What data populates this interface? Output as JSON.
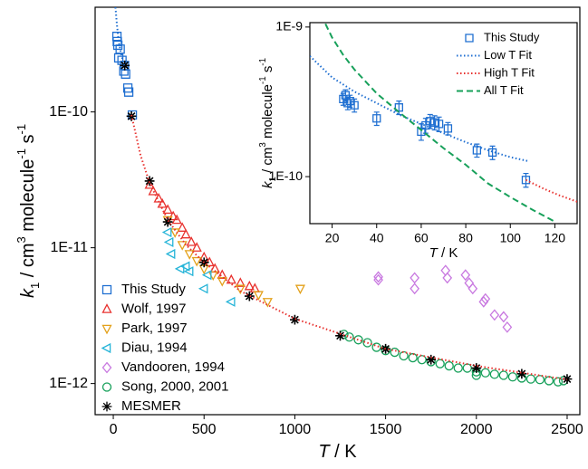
{
  "chart_data": [
    {
      "type": "scatter",
      "xlabel": [
        {
          "text": "T",
          "style": "italic"
        },
        {
          "text": " / K"
        }
      ],
      "ylabel": [
        {
          "text": "k",
          "style": "italic"
        },
        {
          "text": "1",
          "style": "sub"
        },
        {
          "text": " / cm"
        },
        {
          "text": "3",
          "style": "sup"
        },
        {
          "text": " molecule"
        },
        {
          "text": "-1",
          "style": "sup"
        },
        {
          "text": " s"
        },
        {
          "text": "-1",
          "style": "sup"
        }
      ],
      "xlim": [
        -100,
        2570
      ],
      "xticks": [
        0,
        500,
        1000,
        1500,
        2000,
        2500
      ],
      "ylim": [
        5.9e-13,
        5.9e-10
      ],
      "log_y": true,
      "yticks": [
        {
          "value": 1e-12,
          "label": "1E-12"
        },
        {
          "value": 1e-11,
          "label": "1E-11"
        },
        {
          "value": 1e-10,
          "label": "1E-10"
        }
      ],
      "legend": "lower left",
      "series": [
        {
          "name": "This Study",
          "color": "#1f6fd1",
          "marker": "square",
          "x": [
            20,
            22,
            25,
            30,
            38,
            48,
            58,
            62,
            68,
            80,
            85,
            105
          ],
          "values": [
            3.6e-10,
            3.3e-10,
            3.1e-10,
            2.5e-10,
            2.9e-10,
            2.4e-10,
            2e-10,
            2.2e-10,
            1.9e-10,
            1.5e-10,
            1.4e-10,
            9.5e-11
          ]
        },
        {
          "name": "Wolf, 1997",
          "color": "#e8322f",
          "marker": "triangle-up",
          "x": [
            200,
            220,
            250,
            270,
            300,
            330,
            350,
            380,
            400,
            430,
            460,
            500,
            530,
            560,
            600,
            650,
            700,
            750,
            780
          ],
          "values": [
            2.9e-11,
            2.6e-11,
            2.3e-11,
            2.1e-11,
            1.9e-11,
            1.7e-11,
            1.6e-11,
            1.4e-11,
            1.25e-11,
            1.1e-11,
            1e-11,
            8.5e-12,
            7.8e-12,
            7e-12,
            6.3e-12,
            5.8e-12,
            5.5e-12,
            5.2e-12,
            5e-12
          ]
        },
        {
          "name": "Park, 1997",
          "color": "#e3a11b",
          "marker": "triangle-down",
          "x": [
            300,
            340,
            380,
            420,
            460,
            500,
            550,
            600,
            700,
            800,
            850,
            1030
          ],
          "values": [
            1.6e-11,
            1.3e-11,
            1.05e-11,
            9e-12,
            8e-12,
            7e-12,
            6.3e-12,
            5.7e-12,
            5e-12,
            4.5e-12,
            4e-12,
            5e-12
          ]
        },
        {
          "name": "Diau, 1994",
          "color": "#25b4d8",
          "marker": "triangle-left",
          "x": [
            300,
            310,
            320,
            370,
            400,
            420,
            500,
            520,
            650
          ],
          "values": [
            1.3e-11,
            1.1e-11,
            9e-12,
            7e-12,
            7.3e-12,
            6.7e-12,
            5e-12,
            6.3e-12,
            4e-12
          ]
        },
        {
          "name": "Vandooren, 1994",
          "color": "#c878e0",
          "marker": "diamond",
          "x": [
            1460,
            1460,
            1660,
            1660,
            1830,
            1840,
            1940,
            1960,
            1980,
            2040,
            2050,
            2100,
            2150,
            2170
          ],
          "values": [
            6.1e-12,
            5.8e-12,
            6e-12,
            5e-12,
            6.8e-12,
            6e-12,
            6.3e-12,
            5.5e-12,
            5e-12,
            4e-12,
            4.2e-12,
            3.2e-12,
            3.1e-12,
            2.6e-12
          ]
        },
        {
          "name": "Song, 2000, 2001",
          "color": "#17a05a",
          "marker": "circle",
          "x": [
            1270,
            1300,
            1350,
            1400,
            1450,
            1500,
            1550,
            1600,
            1650,
            1700,
            1750,
            1800,
            1850,
            1900,
            1950,
            2000,
            2000,
            2050,
            2100,
            2150,
            2200,
            2250,
            2300,
            2350,
            2400,
            2450,
            2480
          ],
          "values": [
            2.3e-12,
            2.2e-12,
            2.1e-12,
            2e-12,
            1.85e-12,
            1.75e-12,
            1.7e-12,
            1.6e-12,
            1.55e-12,
            1.5e-12,
            1.45e-12,
            1.4e-12,
            1.35e-12,
            1.3e-12,
            1.3e-12,
            1.22e-12,
            1.15e-12,
            1.2e-12,
            1.17e-12,
            1.15e-12,
            1.12e-12,
            1.1e-12,
            1.08e-12,
            1.07e-12,
            1.05e-12,
            1.03e-12,
            1.05e-12
          ]
        },
        {
          "name": "MESMER",
          "color": "#000000",
          "marker": "asterisk",
          "x": [
            63,
            100,
            200,
            300,
            500,
            750,
            1000,
            1250,
            1500,
            1750,
            2000,
            2250,
            2500
          ],
          "values": [
            2.2e-10,
            9.3e-11,
            3.1e-11,
            1.55e-11,
            7.8e-12,
            4.4e-12,
            2.95e-12,
            2.25e-12,
            1.8e-12,
            1.5e-12,
            1.3e-12,
            1.18e-12,
            1.08e-12
          ]
        },
        {
          "color": "#1f6fd1",
          "line": "dotted",
          "x": [
            12,
            20,
            30,
            45,
            60
          ],
          "values": [
            5.9e-10,
            4.4e-10,
            3.3e-10,
            2.6e-10,
            2.2e-10
          ]
        },
        {
          "color": "#e8322f",
          "line": "dotted",
          "x": [
            100,
            150,
            200,
            300,
            400,
            500,
            700,
            1000,
            1500,
            2000,
            2500
          ],
          "values": [
            9.5e-11,
            4.8e-11,
            3e-11,
            1.6e-11,
            1.05e-11,
            7.8e-12,
            4.8e-12,
            3e-12,
            1.8e-12,
            1.35e-12,
            1.07e-12
          ]
        }
      ]
    },
    {
      "type": "scatter",
      "xlabel": [
        {
          "text": "T",
          "style": "italic"
        },
        {
          "text": " / K"
        }
      ],
      "ylabel": [
        {
          "text": "k",
          "style": "italic"
        },
        {
          "text": "1",
          "style": "sub"
        },
        {
          "text": " / cm"
        },
        {
          "text": "3",
          "style": "sup"
        },
        {
          "text": " molecule"
        },
        {
          "text": "-1",
          "style": "sup"
        },
        {
          "text": " s"
        },
        {
          "text": "-1",
          "style": "sup"
        }
      ],
      "xlim": [
        10,
        130
      ],
      "xticks": [
        20,
        40,
        60,
        80,
        100,
        120
      ],
      "ylim": [
        4.85e-11,
        1.07e-09
      ],
      "log_y": true,
      "yticks": [
        {
          "value": 1e-10,
          "label": "1E-10"
        },
        {
          "value": 1e-09,
          "label": "1E-9"
        }
      ],
      "legend": "upper right",
      "series": [
        {
          "name": "This Study",
          "color": "#1f6fd1",
          "marker": "square",
          "x": [
            25,
            26,
            27,
            28,
            30,
            40,
            50,
            60,
            62,
            64,
            66,
            68,
            72,
            85,
            92,
            107
          ],
          "values": [
            3.3e-10,
            3.5e-10,
            3.1e-10,
            3.2e-10,
            3e-10,
            2.45e-10,
            2.9e-10,
            2e-10,
            2.2e-10,
            2.35e-10,
            2.3e-10,
            2.25e-10,
            2.1e-10,
            1.5e-10,
            1.45e-10,
            9.5e-11
          ],
          "errors": [
            3e-11,
            3e-11,
            3e-11,
            3e-11,
            3e-11,
            2.5e-11,
            3e-11,
            2.5e-11,
            2.5e-11,
            2.5e-11,
            2.5e-11,
            2.5e-11,
            2e-11,
            1.5e-11,
            1.5e-11,
            1e-11
          ]
        },
        {
          "name": "Low T Fit",
          "color": "#1f6fd1",
          "line": "dotted",
          "x": [
            10,
            20,
            30,
            40,
            50,
            60,
            70,
            80,
            90,
            100,
            108
          ],
          "values": [
            6.4e-10,
            4.6e-10,
            3.7e-10,
            3.1e-10,
            2.6e-10,
            2.25e-10,
            1.95e-10,
            1.7e-10,
            1.5e-10,
            1.35e-10,
            1.27e-10
          ]
        },
        {
          "name": "High T Fit",
          "color": "#e8322f",
          "line": "dotted",
          "x": [
            107,
            115,
            122,
            130
          ],
          "values": [
            9.5e-11,
            8.3e-11,
            7.5e-11,
            6.8e-11
          ]
        },
        {
          "name": "All T Fit",
          "color": "#17a05a",
          "line": "dashed",
          "x": [
            17,
            20,
            25,
            30,
            40,
            50,
            60,
            70,
            80,
            90,
            100,
            110,
            120
          ],
          "values": [
            1.05e-09,
            8.5e-10,
            6.5e-10,
            5.2e-10,
            3.6e-10,
            2.7e-10,
            2.05e-10,
            1.55e-10,
            1.2e-10,
            9e-11,
            7.3e-11,
            6e-11,
            5e-11
          ]
        }
      ]
    }
  ]
}
